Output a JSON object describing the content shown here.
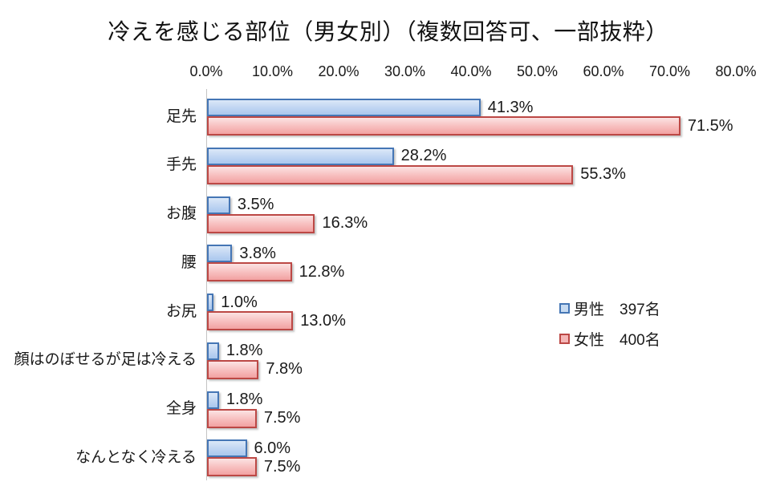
{
  "chart_data": {
    "type": "bar",
    "orientation": "horizontal",
    "title": "冷えを感じる部位（男女別）（複数回答可、一部抜粋）",
    "categories": [
      "足先",
      "手先",
      "お腹",
      "腰",
      "お尻",
      "顔はのぼせるが足は冷える",
      "全身",
      "なんとなく冷える"
    ],
    "series": [
      {
        "name": "男性",
        "count": "397名",
        "values": [
          41.3,
          28.2,
          3.5,
          3.8,
          1.0,
          1.8,
          1.8,
          6.0
        ],
        "labels": [
          "41.3%",
          "28.2%",
          "3.5%",
          "3.8%",
          "1.0%",
          "1.8%",
          "1.8%",
          "6.0%"
        ]
      },
      {
        "name": "女性",
        "count": "400名",
        "values": [
          71.5,
          55.3,
          16.3,
          12.8,
          13.0,
          7.8,
          7.5,
          7.5
        ],
        "labels": [
          "71.5%",
          "55.3%",
          "16.3%",
          "12.8%",
          "13.0%",
          "7.8%",
          "7.5%",
          "7.5%"
        ]
      }
    ],
    "x_axis": {
      "min": 0,
      "max": 80,
      "tick_step": 10,
      "ticks": [
        "0.0%",
        "10.0%",
        "20.0%",
        "30.0%",
        "40.0%",
        "50.0%",
        "60.0%",
        "70.0%",
        "80.0%"
      ]
    },
    "legend": {
      "position": "middle-right",
      "items": [
        {
          "label": "男性　397名"
        },
        {
          "label": "女性　400名"
        }
      ]
    },
    "grid": false,
    "data_labels": true
  },
  "colors": {
    "male_border": "#4576b5",
    "male_fill_top": "#dbe8f8",
    "male_fill_bottom": "#a9c7ee",
    "female_border": "#bc4845",
    "female_fill_top": "#fbe3e3",
    "female_fill_bottom": "#f2a1a1",
    "axis_line": "#c3c3c3",
    "text": "#1a1a1a",
    "background": "#ffffff"
  }
}
